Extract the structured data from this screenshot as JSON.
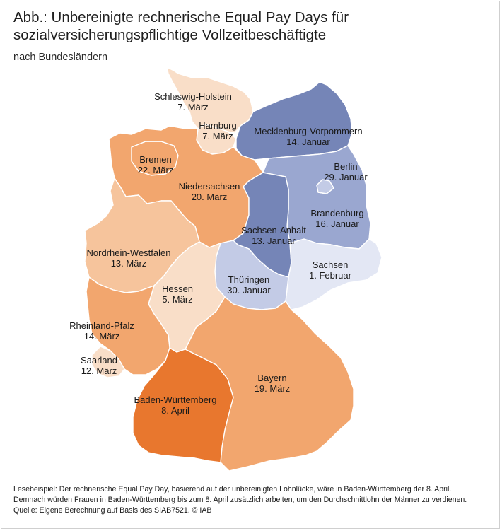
{
  "title_line1": "Abb.: Unbereinigte rechnerische Equal Pay Days für",
  "title_line2": "sozialversicherungspflichtige Vollzeitbeschäftigte",
  "subtitle": "nach Bundesländern",
  "colors": {
    "april_dark": "#e8772e",
    "maerz_mid": "#f2a66e",
    "maerz_light": "#f6c49c",
    "maerz_pale": "#f9dec8",
    "januar_dark": "#7585b7",
    "januar_mid": "#9aa7d0",
    "januar_light": "#c3cbe6",
    "februar_pale": "#e3e7f4"
  },
  "states": [
    {
      "name": "Schleswig-Holstein",
      "date": "7. März"
    },
    {
      "name": "Hamburg",
      "date": "7. März"
    },
    {
      "name": "Mecklenburg-Vorpommern",
      "date": "14. Januar"
    },
    {
      "name": "Bremen",
      "date": "22. März"
    },
    {
      "name": "Berlin",
      "date": "29. Januar"
    },
    {
      "name": "Niedersachsen",
      "date": "20. März"
    },
    {
      "name": "Brandenburg",
      "date": "16. Januar"
    },
    {
      "name": "Sachsen-Anhalt",
      "date": "13. Januar"
    },
    {
      "name": "Nordrhein-Westfalen",
      "date": "13. März"
    },
    {
      "name": "Sachsen",
      "date": "1. Februar"
    },
    {
      "name": "Thüringen",
      "date": "30. Januar"
    },
    {
      "name": "Hessen",
      "date": "5. März"
    },
    {
      "name": "Rheinland-Pfalz",
      "date": "14. März"
    },
    {
      "name": "Saarland",
      "date": "12. März"
    },
    {
      "name": "Bayern",
      "date": "19. März"
    },
    {
      "name": "Baden-Württemberg",
      "date": "8. April"
    }
  ],
  "footer": {
    "line1": "Lesebeispiel: Der rechnerische Equal Pay Day, basierend auf der unbereinigten Lohnlücke, wäre in Baden-Württemberg der 8. April.",
    "line2": "Demnach würden Frauen in Baden-Württemberg bis zum 8. April zusätzlich arbeiten, um den Durchschnittlohn der Männer zu verdienen.",
    "line3": "Quelle: Eigene Berechnung auf Basis des SIAB7521.  © IAB"
  }
}
